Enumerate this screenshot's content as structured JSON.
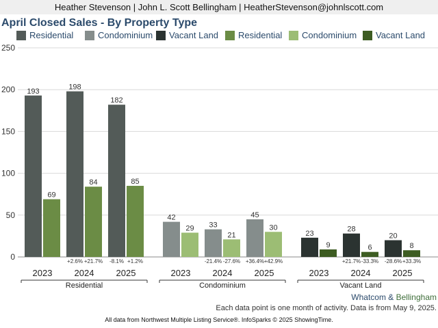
{
  "header": {
    "contact": "Heather Stevenson | John L. Scott Bellingham | HeatherStevenson@johnlscott.com"
  },
  "colors": {
    "residential_prior": "#535b58",
    "condominium_prior": "#858d8c",
    "vacant_prior": "#2b3331",
    "residential_current": "#6b8c45",
    "condominium_current": "#9cbd74",
    "vacant_current": "#3d5c22",
    "title": "#2b4a6b"
  },
  "chart_data": {
    "type": "bar",
    "title": "April Closed Sales - By Property Type",
    "ylim": [
      0,
      250
    ],
    "yticks": [
      0,
      50,
      100,
      150,
      200,
      250
    ],
    "grid": true,
    "legend_position": "top",
    "legend": [
      {
        "label": "Residential",
        "color_key": "residential_prior"
      },
      {
        "label": "Condominium",
        "color_key": "condominium_prior"
      },
      {
        "label": "Vacant Land",
        "color_key": "vacant_prior"
      },
      {
        "label": "Residential",
        "color_key": "residential_current"
      },
      {
        "label": "Condominium",
        "color_key": "condominium_current"
      },
      {
        "label": "Vacant Land",
        "color_key": "vacant_current"
      }
    ],
    "groups": [
      {
        "name": "Residential",
        "prior_color_key": "residential_prior",
        "current_color_key": "residential_current",
        "years": [
          {
            "year": "2023",
            "prior": 193,
            "current": 69
          },
          {
            "year": "2024",
            "prior": 198,
            "current": 84,
            "change_prior": "+2.6%",
            "change_current": "+21.7%"
          },
          {
            "year": "2025",
            "prior": 182,
            "current": 85,
            "change_prior": "-8.1%",
            "change_current": "+1.2%"
          }
        ]
      },
      {
        "name": "Condominium",
        "prior_color_key": "condominium_prior",
        "current_color_key": "condominium_current",
        "years": [
          {
            "year": "2023",
            "prior": 42,
            "current": 29
          },
          {
            "year": "2024",
            "prior": 33,
            "current": 21,
            "change_prior": "-21.4%",
            "change_current": "-27.6%"
          },
          {
            "year": "2025",
            "prior": 45,
            "current": 30,
            "change_prior": "+36.4%",
            "change_current": "+42.9%"
          }
        ]
      },
      {
        "name": "Vacant Land",
        "prior_color_key": "vacant_prior",
        "current_color_key": "vacant_current",
        "years": [
          {
            "year": "2023",
            "prior": 23,
            "current": 9
          },
          {
            "year": "2024",
            "prior": 28,
            "current": 6,
            "change_prior": "+21.7%",
            "change_current": "-33.3%"
          },
          {
            "year": "2025",
            "prior": 20,
            "current": 8,
            "change_prior": "-28.6%",
            "change_current": "+33.3%"
          }
        ]
      }
    ]
  },
  "footer": {
    "brand_part1": "Whatcom",
    "brand_amp": " & ",
    "brand_part2": "Bellingham",
    "note": "Each data point is one month of activity. Data is from May 9, 2025.",
    "source": "All data from Northwest Multiple Listing Service®. InfoSparks © 2025 ShowingTime."
  }
}
